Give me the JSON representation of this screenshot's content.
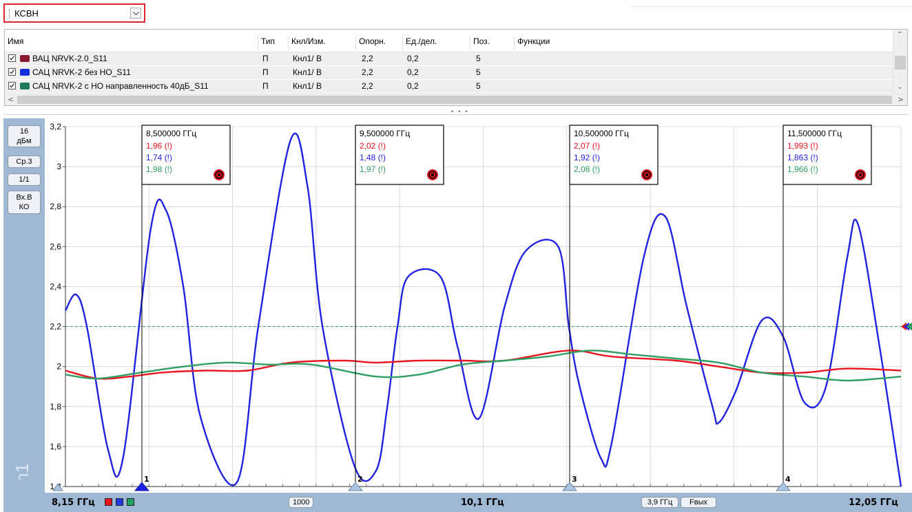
{
  "measurement_select": {
    "value": "КСВН"
  },
  "table": {
    "headers": [
      "Имя",
      "Тип",
      "Кнл/Изм.",
      "Опорн.",
      "Ед./дел.",
      "Поз.",
      "Функции"
    ],
    "rows": [
      {
        "name": "ВАЦ NRVK-2.0_S11",
        "type": "П",
        "chan": "Кнл1/ В",
        "ref": "2,2",
        "scale": "0,2",
        "pos": "5",
        "color": "#8b1a2e",
        "checked": true
      },
      {
        "name": "САЦ NRVK-2 без НО_S11",
        "type": "П",
        "chan": "Кнл1/ В",
        "ref": "2,2",
        "scale": "0,2",
        "pos": "5",
        "color": "#1530d8",
        "checked": true
      },
      {
        "name": "САЦ NRVK-2 с НО направленность 40дБ_S11",
        "type": "П",
        "chan": "Кнл1/ В",
        "ref": "2,2",
        "scale": "0,2",
        "pos": "5",
        "color": "#1f7a5a",
        "checked": true
      }
    ]
  },
  "left_panel": {
    "buttons": [
      {
        "line1": "16",
        "line2": "дБм"
      },
      {
        "line1": "Ср.3",
        "line2": ""
      },
      {
        "line1": "1/1",
        "line2": ""
      },
      {
        "line1": "Вх.В",
        "line2": "КО"
      }
    ],
    "channel_label": "Кнл1"
  },
  "bottom_bar": {
    "start_freq": "8,15 ГГц",
    "points": "1000",
    "center_freq": "10,1 ГГц",
    "span": "3,9 ГГц",
    "mode": "Fвых",
    "stop_freq": "12,05 ГГц",
    "trace_colors": [
      "#e8141e",
      "#1f3ae0",
      "#22a060"
    ]
  },
  "chart_data": {
    "type": "line",
    "x_unit": "ГГц",
    "xlim": [
      8.15,
      12.05
    ],
    "ylim": [
      1.4,
      3.2
    ],
    "y_ticks": [
      "3,2",
      "3",
      "2,8",
      "2,6",
      "2,4",
      "2,2",
      "2",
      "1,8",
      "1,6",
      "1,4"
    ],
    "reference_line": 2.2,
    "grid": true,
    "series": [
      {
        "name": "САЦ NRVK-2 без НО_S11",
        "color": "#1f22e0",
        "x": [
          8.15,
          8.2,
          8.25,
          8.35,
          8.42,
          8.55,
          8.62,
          8.7,
          8.78,
          8.95,
          9.05,
          9.2,
          9.28,
          9.35,
          9.5,
          9.6,
          9.65,
          9.7,
          9.75,
          9.9,
          9.98,
          10.08,
          10.2,
          10.3,
          10.45,
          10.5,
          10.55,
          10.65,
          10.7,
          10.85,
          10.95,
          11.05,
          11.17,
          11.2,
          11.28,
          11.4,
          11.5,
          11.6,
          11.7,
          11.8,
          11.85,
          11.95,
          12.05
        ],
        "y": [
          2.28,
          2.36,
          2.2,
          1.58,
          1.55,
          2.7,
          2.78,
          2.4,
          1.75,
          1.42,
          2.2,
          3.13,
          2.9,
          2.2,
          1.5,
          1.48,
          1.78,
          2.2,
          2.45,
          2.45,
          2.1,
          1.74,
          2.3,
          2.58,
          2.6,
          2.2,
          1.9,
          1.54,
          1.62,
          2.55,
          2.75,
          2.3,
          1.8,
          1.72,
          1.88,
          2.23,
          2.15,
          1.82,
          1.9,
          2.55,
          2.71,
          2.1,
          1.4
        ]
      },
      {
        "name": "ВАЦ NRVK-2.0_S11",
        "color": "#e8141e",
        "x": [
          8.15,
          8.3,
          8.45,
          8.6,
          8.8,
          9.0,
          9.2,
          9.45,
          9.6,
          9.8,
          10.0,
          10.2,
          10.5,
          10.7,
          11.0,
          11.2,
          11.4,
          11.6,
          11.8,
          12.05
        ],
        "y": [
          1.98,
          1.94,
          1.95,
          1.97,
          1.98,
          1.98,
          2.02,
          2.03,
          2.02,
          2.03,
          2.03,
          2.03,
          2.08,
          2.05,
          2.03,
          2.0,
          1.97,
          1.97,
          1.99,
          1.98
        ]
      },
      {
        "name": "САЦ NRVK-2 с НО направленность 40дБ_S11",
        "color": "#2e9e62",
        "x": [
          8.15,
          8.3,
          8.5,
          8.7,
          8.9,
          9.1,
          9.3,
          9.6,
          9.8,
          10.0,
          10.2,
          10.4,
          10.6,
          10.8,
          11.0,
          11.2,
          11.4,
          11.6,
          11.8,
          12.05
        ],
        "y": [
          1.96,
          1.94,
          1.97,
          2.0,
          2.02,
          2.01,
          2.01,
          1.95,
          1.96,
          2.01,
          2.03,
          2.05,
          2.08,
          2.06,
          2.04,
          2.02,
          1.97,
          1.95,
          1.93,
          1.95
        ]
      }
    ],
    "markers": [
      {
        "num": "1",
        "freq": "8,500000 ГГц",
        "values": [
          "1,96 (!)",
          "1,74 (!)",
          "1,98 (!)"
        ],
        "active": true
      },
      {
        "num": "2",
        "freq": "9,500000 ГГц",
        "values": [
          "2,02 (!)",
          "1,48 (!)",
          "1,97 (!)"
        ],
        "active": false
      },
      {
        "num": "3",
        "freq": "10,500000 ГГц",
        "values": [
          "2,07 (!)",
          "1,92 (!)",
          "2,08 (!)"
        ],
        "active": false
      },
      {
        "num": "4",
        "freq": "11,500000 ГГц",
        "values": [
          "1,993 (!)",
          "1,863 (!)",
          "1,966 (!)"
        ],
        "active": false
      }
    ],
    "marker_value_colors": [
      "#e8141e",
      "#1f22e0",
      "#2e9e62"
    ]
  }
}
